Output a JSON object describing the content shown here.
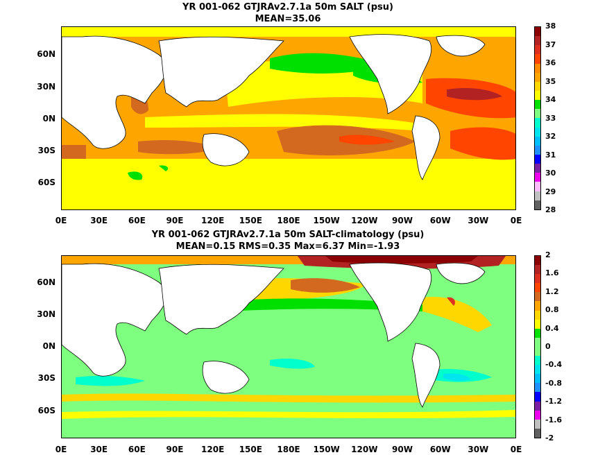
{
  "panels": [
    {
      "title": "YR 001-062 GTJRAv2.7.1a 50m SALT (psu)",
      "subtitle": "MEAN=35.06",
      "lat_labels": [
        "60N",
        "30N",
        "0N",
        "30S",
        "60S"
      ],
      "lon_labels": [
        "0E",
        "30E",
        "60E",
        "90E",
        "120E",
        "150E",
        "180E",
        "150W",
        "120W",
        "90W",
        "60W",
        "30W",
        "0E"
      ],
      "colorbar": {
        "labels": [
          "38",
          "37",
          "36",
          "35",
          "34",
          "33",
          "32",
          "31",
          "30",
          "29",
          "28"
        ],
        "colors": [
          "#8b0000",
          "#b22222",
          "#dc2f1f",
          "#ff4500",
          "#ff8c00",
          "#ffa500",
          "#ffd700",
          "#ffff00",
          "#00e000",
          "#7fff7f",
          "#00ffcc",
          "#00e5ee",
          "#00bfff",
          "#1e90ff",
          "#0000ff",
          "#7b1fa2",
          "#ee00ee",
          "#ffbbff",
          "#c0c0c0",
          "#606060"
        ]
      }
    },
    {
      "title": "YR 001-062 GTJRAv2.7.1a 50m SALT-climatology (psu)",
      "subtitle": "MEAN=0.15   RMS=0.35   Max=6.37   Min=-1.93",
      "lat_labels": [
        "60N",
        "30N",
        "0N",
        "30S",
        "60S"
      ],
      "lon_labels": [
        "0E",
        "30E",
        "60E",
        "90E",
        "120E",
        "150E",
        "180E",
        "150W",
        "120W",
        "90W",
        "60W",
        "30W",
        "0E"
      ],
      "colorbar": {
        "labels": [
          "2",
          "1.6",
          "1.2",
          "0.8",
          "0.4",
          "0",
          "-0.4",
          "-0.8",
          "-1.2",
          "-1.6",
          "-2"
        ],
        "colors": [
          "#8b0000",
          "#b22222",
          "#dc2f1f",
          "#ff4500",
          "#d2691e",
          "#ffa500",
          "#ffd700",
          "#ffff00",
          "#00e000",
          "#7fff7f",
          "#7fff7f",
          "#00ffcc",
          "#00e5ee",
          "#00bfff",
          "#1e90ff",
          "#0000ff",
          "#7b1fa2",
          "#ee00ee",
          "#c0c0c0",
          "#606060"
        ]
      }
    }
  ]
}
